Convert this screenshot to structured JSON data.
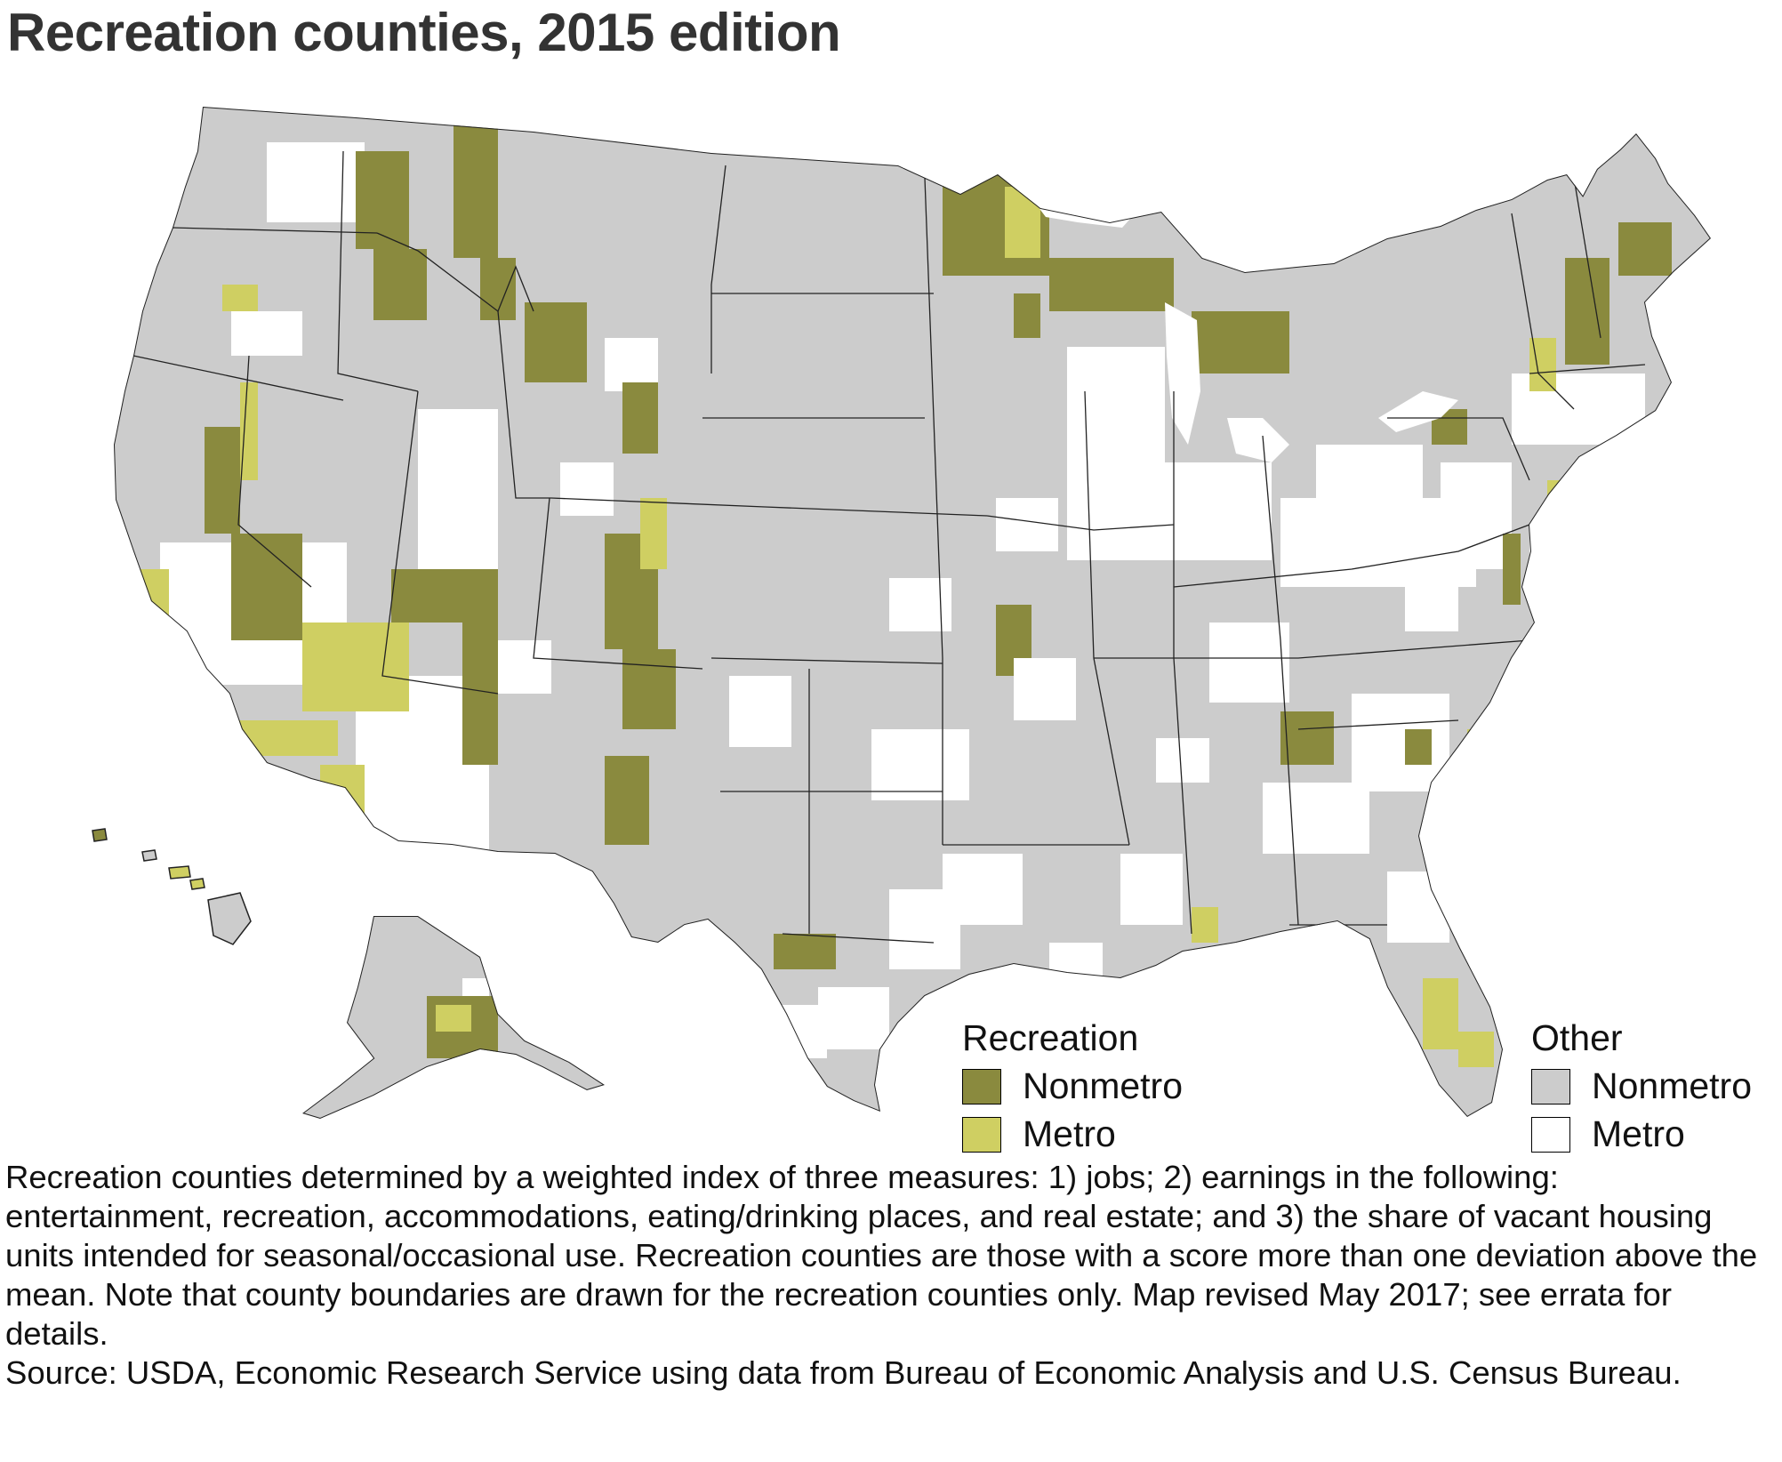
{
  "title": "Recreation counties, 2015 edition",
  "legend": {
    "recreation": {
      "heading": "Recreation",
      "items": [
        {
          "label": "Nonmetro",
          "color": "#8a8a3e"
        },
        {
          "label": "Metro",
          "color": "#cfcf62"
        }
      ]
    },
    "other": {
      "heading": "Other",
      "items": [
        {
          "label": "Nonmetro",
          "color": "#cccccc"
        },
        {
          "label": "Metro",
          "color": "#ffffff"
        }
      ]
    }
  },
  "notes": "Recreation counties determined by a weighted index of three measures: 1) jobs; 2) earnings in the following: entertainment, recreation, accommodations, eating/drinking places, and real estate; and 3) the share of vacant housing units intended for seasonal/occasional use. Recreation counties are those with a score more than one deviation above the mean. Note that county boundaries are drawn for the recreation counties only. Map revised May 2017; see errata for details.",
  "source": "Source: USDA, Economic Research Service using data from Bureau of Economic Analysis and U.S. Census Bureau."
}
